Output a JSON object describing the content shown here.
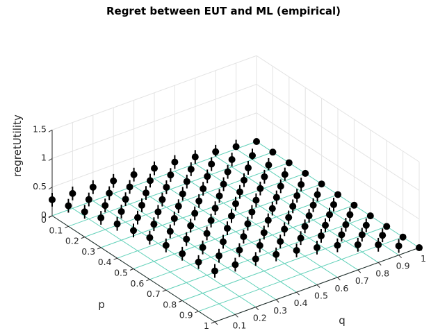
{
  "chart_data": {
    "type": "scatter",
    "title": "Regret between EUT and ML (empirical)",
    "xlabel": "p",
    "ylabel": "q",
    "zlabel": "regretUtility",
    "xlim": [
      0,
      1
    ],
    "ylim": [
      0,
      1
    ],
    "zlim": [
      0,
      1.5
    ],
    "x_ticks": [
      "0",
      "0.1",
      "0.2",
      "0.3",
      "0.4",
      "0.5",
      "0.6",
      "0.7",
      "0.8",
      "0.9",
      "1"
    ],
    "y_ticks": [
      "0",
      "0.1",
      "0.2",
      "0.3",
      "0.4",
      "0.5",
      "0.6",
      "0.7",
      "0.8",
      "0.9",
      "1"
    ],
    "z_ticks": [
      "0",
      "0.5",
      "1",
      "1.5"
    ],
    "grid": true,
    "floor_grid_color": "#5fd0b8",
    "marker_color": "#000000",
    "error_bars": true,
    "series": [
      {
        "p": [
          0,
          0.1,
          0.2,
          0.3,
          0.4,
          0.5,
          0.6,
          0.7,
          0.8,
          0.9,
          1
        ],
        "q": [
          0,
          0.1,
          0.2,
          0.3,
          0.4,
          0.5,
          0.6,
          0.7,
          0.8,
          0.9,
          1
        ],
        "regretUtility": [
          [
            0.28,
            0.26,
            0.24,
            0.22,
            0.2,
            0.18,
            0.16,
            0.12,
            0.08,
            0.04,
            0.0
          ],
          [
            0.36,
            0.34,
            0.32,
            0.3,
            0.28,
            0.25,
            0.22,
            0.18,
            0.13,
            0.07,
            0.0
          ],
          [
            0.44,
            0.42,
            0.4,
            0.38,
            0.35,
            0.32,
            0.28,
            0.23,
            0.17,
            0.09,
            0.0
          ],
          [
            0.52,
            0.5,
            0.48,
            0.45,
            0.42,
            0.38,
            0.33,
            0.27,
            0.2,
            0.11,
            0.0
          ],
          [
            0.6,
            0.58,
            0.55,
            0.52,
            0.48,
            0.44,
            0.38,
            0.31,
            0.22,
            0.12,
            0.0
          ],
          [
            0.67,
            0.65,
            0.62,
            0.58,
            0.54,
            0.49,
            0.42,
            0.34,
            0.24,
            0.13,
            0.0
          ],
          [
            0.73,
            0.71,
            0.68,
            0.64,
            0.59,
            0.53,
            0.46,
            0.37,
            0.26,
            0.14,
            0.0
          ],
          [
            0.78,
            0.76,
            0.73,
            0.69,
            0.64,
            0.57,
            0.49,
            0.39,
            0.28,
            0.15,
            0.0
          ],
          [
            0.82,
            0.8,
            0.77,
            0.73,
            0.67,
            0.6,
            0.52,
            0.41,
            0.29,
            0.15,
            0.0
          ],
          [
            0.86,
            0.84,
            0.81,
            0.76,
            0.7,
            0.63,
            0.54,
            0.43,
            0.3,
            0.16,
            0.0
          ],
          [
            0.89,
            0.87,
            0.84,
            0.79,
            0.73,
            0.65,
            0.56,
            0.44,
            0.31,
            0.16,
            0.0
          ]
        ],
        "error": 0.12
      }
    ]
  }
}
